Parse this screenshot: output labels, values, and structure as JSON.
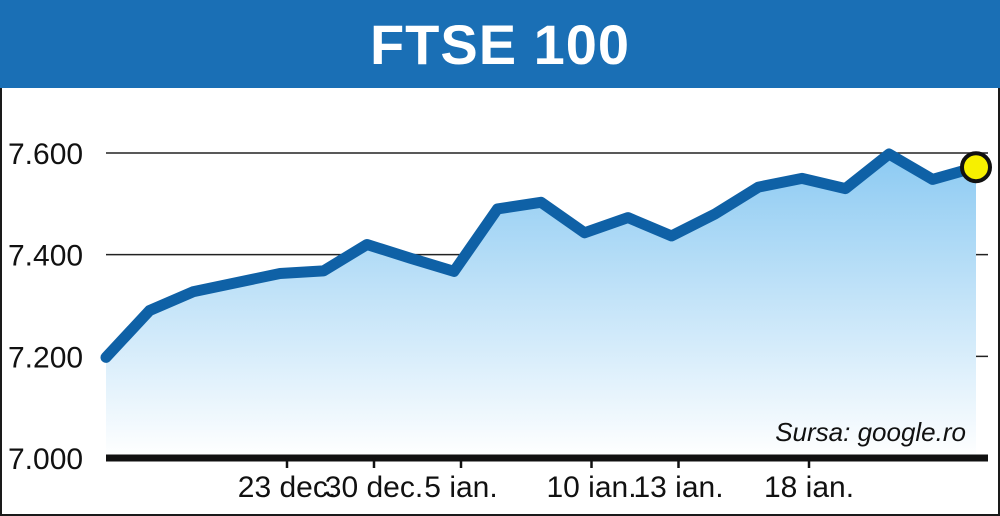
{
  "header": {
    "title": "FTSE 100"
  },
  "source": "Sursa: google.ro",
  "colors": {
    "header_bg": "#1a6fb5",
    "line": "#0f61a6",
    "fill_top": "#8ccaf2",
    "fill_bottom": "#ffffff",
    "last_point": "#f7f000"
  },
  "chart_data": {
    "type": "area",
    "title": "FTSE 100",
    "xlabel": "",
    "ylabel": "",
    "ylim": [
      7000,
      7600
    ],
    "y_ticks": [
      {
        "value": 7000,
        "label": "7.000"
      },
      {
        "value": 7200,
        "label": "7.200"
      },
      {
        "value": 7400,
        "label": "7.400"
      },
      {
        "value": 7600,
        "label": "7.600"
      }
    ],
    "gridlines": [
      7200,
      7400,
      7600
    ],
    "x_ticks": [
      {
        "index": 4,
        "label": "23 dec."
      },
      {
        "index": 6,
        "label": "30 dec."
      },
      {
        "index": 8,
        "label": "5 ian."
      },
      {
        "index": 11,
        "label": "10 ian."
      },
      {
        "index": 13,
        "label": "13 ian."
      },
      {
        "index": 16,
        "label": "18 ian."
      }
    ],
    "values": [
      7198,
      7290,
      7327,
      7345,
      7363,
      7368,
      7420,
      7393,
      7367,
      7490,
      7503,
      7443,
      7473,
      7437,
      7480,
      7533,
      7550,
      7530,
      7598,
      7548,
      7572
    ],
    "last_point_highlight": true,
    "grid": true,
    "source": "Sursa: google.ro"
  }
}
